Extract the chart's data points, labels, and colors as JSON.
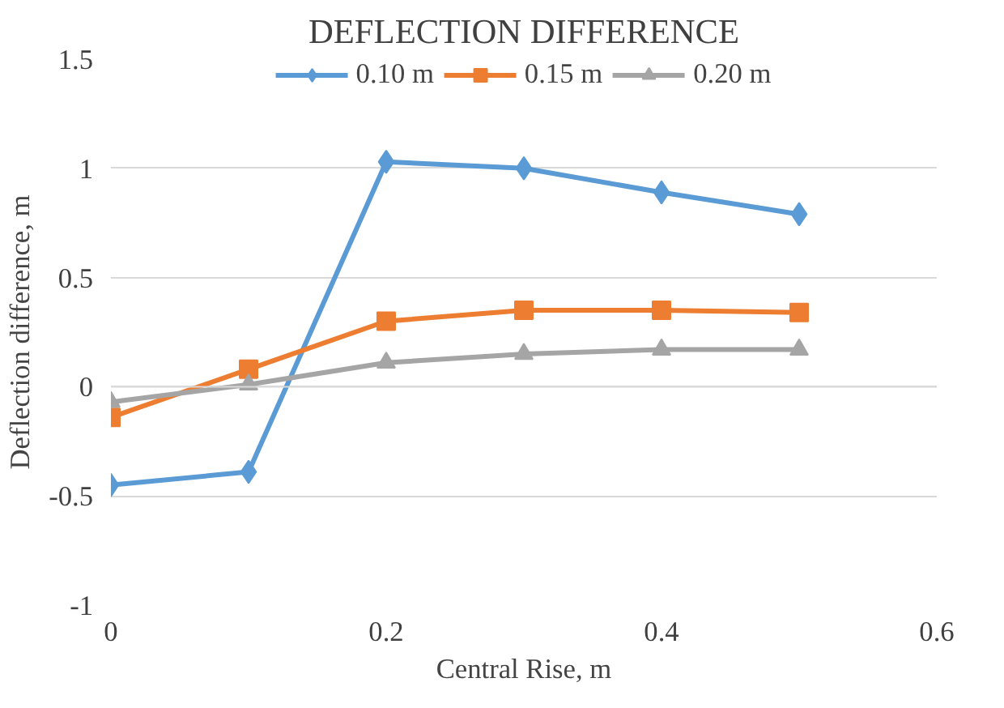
{
  "chart_data": {
    "type": "line",
    "title": "DEFLECTION DIFFERENCE",
    "xlabel": "Central Rise, m",
    "ylabel": "Deflection difference, m",
    "x": [
      0,
      0.1,
      0.2,
      0.3,
      0.4,
      0.5
    ],
    "series": [
      {
        "name": "0.10 m",
        "color": "#5b9bd5",
        "marker": "diamond",
        "values": [
          -0.45,
          -0.39,
          1.03,
          1.0,
          0.89,
          0.79
        ]
      },
      {
        "name": "0.15 m",
        "color": "#ed7d31",
        "marker": "square",
        "values": [
          -0.14,
          0.08,
          0.3,
          0.35,
          0.35,
          0.34
        ]
      },
      {
        "name": "0.20 m",
        "color": "#a5a5a5",
        "marker": "triangle",
        "values": [
          -0.07,
          0.01,
          0.11,
          0.15,
          0.17,
          0.17
        ]
      }
    ],
    "xlim": [
      0,
      0.6
    ],
    "xticks": [
      0,
      0.2,
      0.4,
      0.6
    ],
    "ylim": [
      -1,
      1.5
    ],
    "yticks": [
      -1,
      -0.5,
      0,
      0.5,
      1,
      1.5
    ],
    "grid": "y",
    "legend": "top",
    "line_style": "solid"
  }
}
